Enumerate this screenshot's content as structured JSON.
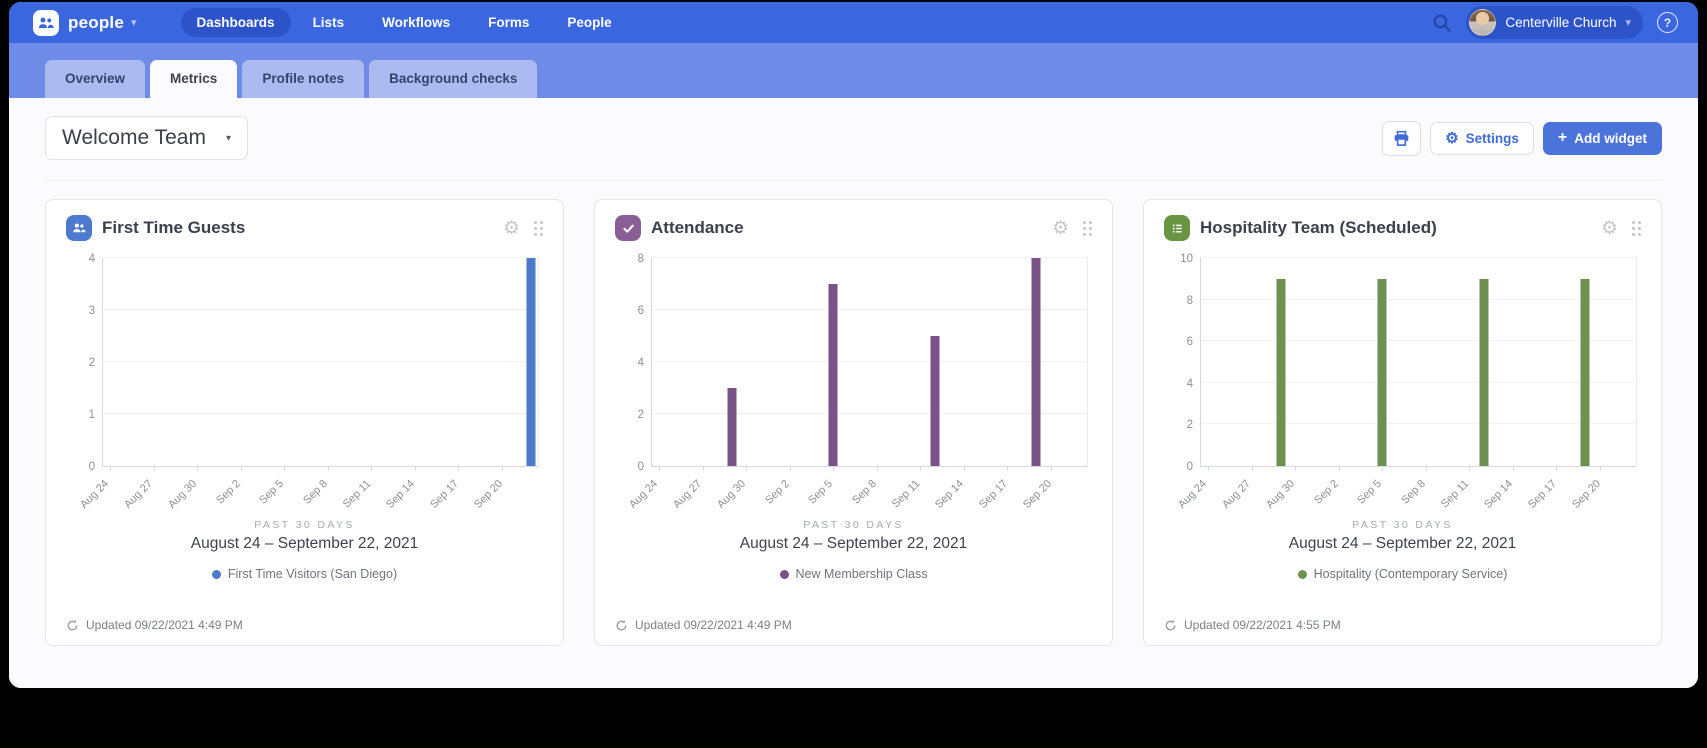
{
  "nav": {
    "brand": "people",
    "items": [
      {
        "label": "Dashboards",
        "active": true
      },
      {
        "label": "Lists",
        "active": false
      },
      {
        "label": "Workflows",
        "active": false
      },
      {
        "label": "Forms",
        "active": false
      },
      {
        "label": "People",
        "active": false
      }
    ],
    "account": "Centerville Church"
  },
  "tabs": [
    {
      "label": "Overview",
      "active": false
    },
    {
      "label": "Metrics",
      "active": true
    },
    {
      "label": "Profile notes",
      "active": false
    },
    {
      "label": "Background checks",
      "active": false
    }
  ],
  "toolbar": {
    "dashboard_name": "Welcome Team",
    "settings_label": "Settings",
    "add_widget_label": "Add widget"
  },
  "icons": {
    "gear": "⚙",
    "chevron_down": "▾",
    "plus": "+",
    "help": "?"
  },
  "chart_data": [
    {
      "type": "bar",
      "title": "First Time Guests",
      "icon": "people-icon",
      "icon_bg": "#4d79cf",
      "bar_color": "#4d79cb",
      "ylim": [
        0,
        4
      ],
      "yticks": [
        0,
        1,
        2,
        3,
        4
      ],
      "num_points": 30,
      "tick_step": 3,
      "x_tick_labels": [
        "Aug 24",
        "Aug 27",
        "Aug 30",
        "Sep 2",
        "Sep 5",
        "Sep 8",
        "Sep 11",
        "Sep 14",
        "Sep 17",
        "Sep 20"
      ],
      "series": [
        {
          "name": "First Time Visitors (San Diego)",
          "points": [
            {
              "x": "Sep 22",
              "day_index": 29,
              "y": 4
            }
          ]
        }
      ],
      "period_label": "PAST 30 DAYS",
      "period_range": "August 24 – September 22, 2021",
      "legend": "First Time Visitors (San Diego)",
      "updated": "Updated 09/22/2021 4:49 PM"
    },
    {
      "type": "bar",
      "title": "Attendance",
      "icon": "check-icon",
      "icon_bg": "#8a5f96",
      "bar_color": "#7b5288",
      "ylim": [
        0,
        8
      ],
      "yticks": [
        0,
        2,
        4,
        6,
        8
      ],
      "num_points": 30,
      "tick_step": 3,
      "x_tick_labels": [
        "Aug 24",
        "Aug 27",
        "Aug 30",
        "Sep 2",
        "Sep 5",
        "Sep 8",
        "Sep 11",
        "Sep 14",
        "Sep 17",
        "Sep 20"
      ],
      "series": [
        {
          "name": "New Membership Class",
          "points": [
            {
              "x": "Aug 29",
              "day_index": 5,
              "y": 3
            },
            {
              "x": "Sep 5",
              "day_index": 12,
              "y": 7
            },
            {
              "x": "Sep 12",
              "day_index": 19,
              "y": 5
            },
            {
              "x": "Sep 19",
              "day_index": 26,
              "y": 8
            }
          ]
        }
      ],
      "period_label": "PAST 30 DAYS",
      "period_range": "August 24 – September 22, 2021",
      "legend": "New Membership Class",
      "updated": "Updated 09/22/2021 4:49 PM"
    },
    {
      "type": "bar",
      "title": "Hospitality Team (Scheduled)",
      "icon": "list-icon",
      "icon_bg": "#689443",
      "bar_color": "#6d9150",
      "ylim": [
        0,
        10
      ],
      "yticks": [
        0,
        2,
        4,
        6,
        8,
        10
      ],
      "num_points": 30,
      "tick_step": 3,
      "x_tick_labels": [
        "Aug 24",
        "Aug 27",
        "Aug 30",
        "Sep 2",
        "Sep 5",
        "Sep 8",
        "Sep 11",
        "Sep 14",
        "Sep 17",
        "Sep 20"
      ],
      "series": [
        {
          "name": "Hospitality (Contemporary Service)",
          "points": [
            {
              "x": "Aug 29",
              "day_index": 5,
              "y": 9
            },
            {
              "x": "Sep 5",
              "day_index": 12,
              "y": 9
            },
            {
              "x": "Sep 12",
              "day_index": 19,
              "y": 9
            },
            {
              "x": "Sep 19",
              "day_index": 26,
              "y": 9
            }
          ]
        }
      ],
      "period_label": "PAST 30 DAYS",
      "period_range": "August 24 – September 22, 2021",
      "legend": "Hospitality (Contemporary Service)",
      "updated": "Updated 09/22/2021 4:55 PM"
    }
  ]
}
